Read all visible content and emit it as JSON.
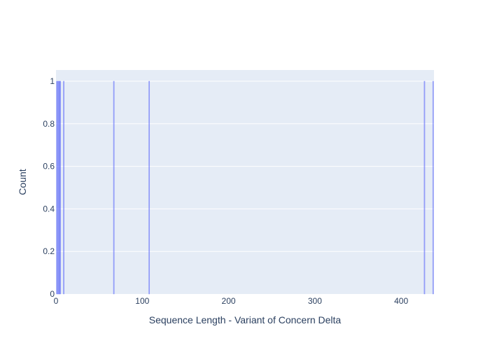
{
  "chart_data": {
    "type": "bar",
    "title": "",
    "xlabel": "Sequence Length - Variant of Concern Delta",
    "ylabel": "Count",
    "xlim": [
      0,
      438
    ],
    "ylim": [
      0,
      1
    ],
    "x_ticks": [
      0,
      100,
      200,
      300,
      400
    ],
    "y_ticks": [
      0,
      0.2,
      0.4,
      0.6,
      0.8,
      1
    ],
    "y_tick_labels": [
      "0",
      "0.2",
      "0.4",
      "0.6",
      "0.8",
      "1"
    ],
    "grid": true,
    "bar_color": "#636efa",
    "bars": [
      {
        "x": 1,
        "y": 1
      },
      {
        "x": 2,
        "y": 1
      },
      {
        "x": 3,
        "y": 1
      },
      {
        "x": 4,
        "y": 1
      },
      {
        "x": 5,
        "y": 1
      },
      {
        "x": 9,
        "y": 1
      },
      {
        "x": 67,
        "y": 1
      },
      {
        "x": 108,
        "y": 1
      },
      {
        "x": 427,
        "y": 1
      },
      {
        "x": 437,
        "y": 1
      }
    ]
  },
  "colors": {
    "plot_background": "#e5ecf6",
    "gridline": "#ffffff",
    "text": "#2a3f5f"
  }
}
